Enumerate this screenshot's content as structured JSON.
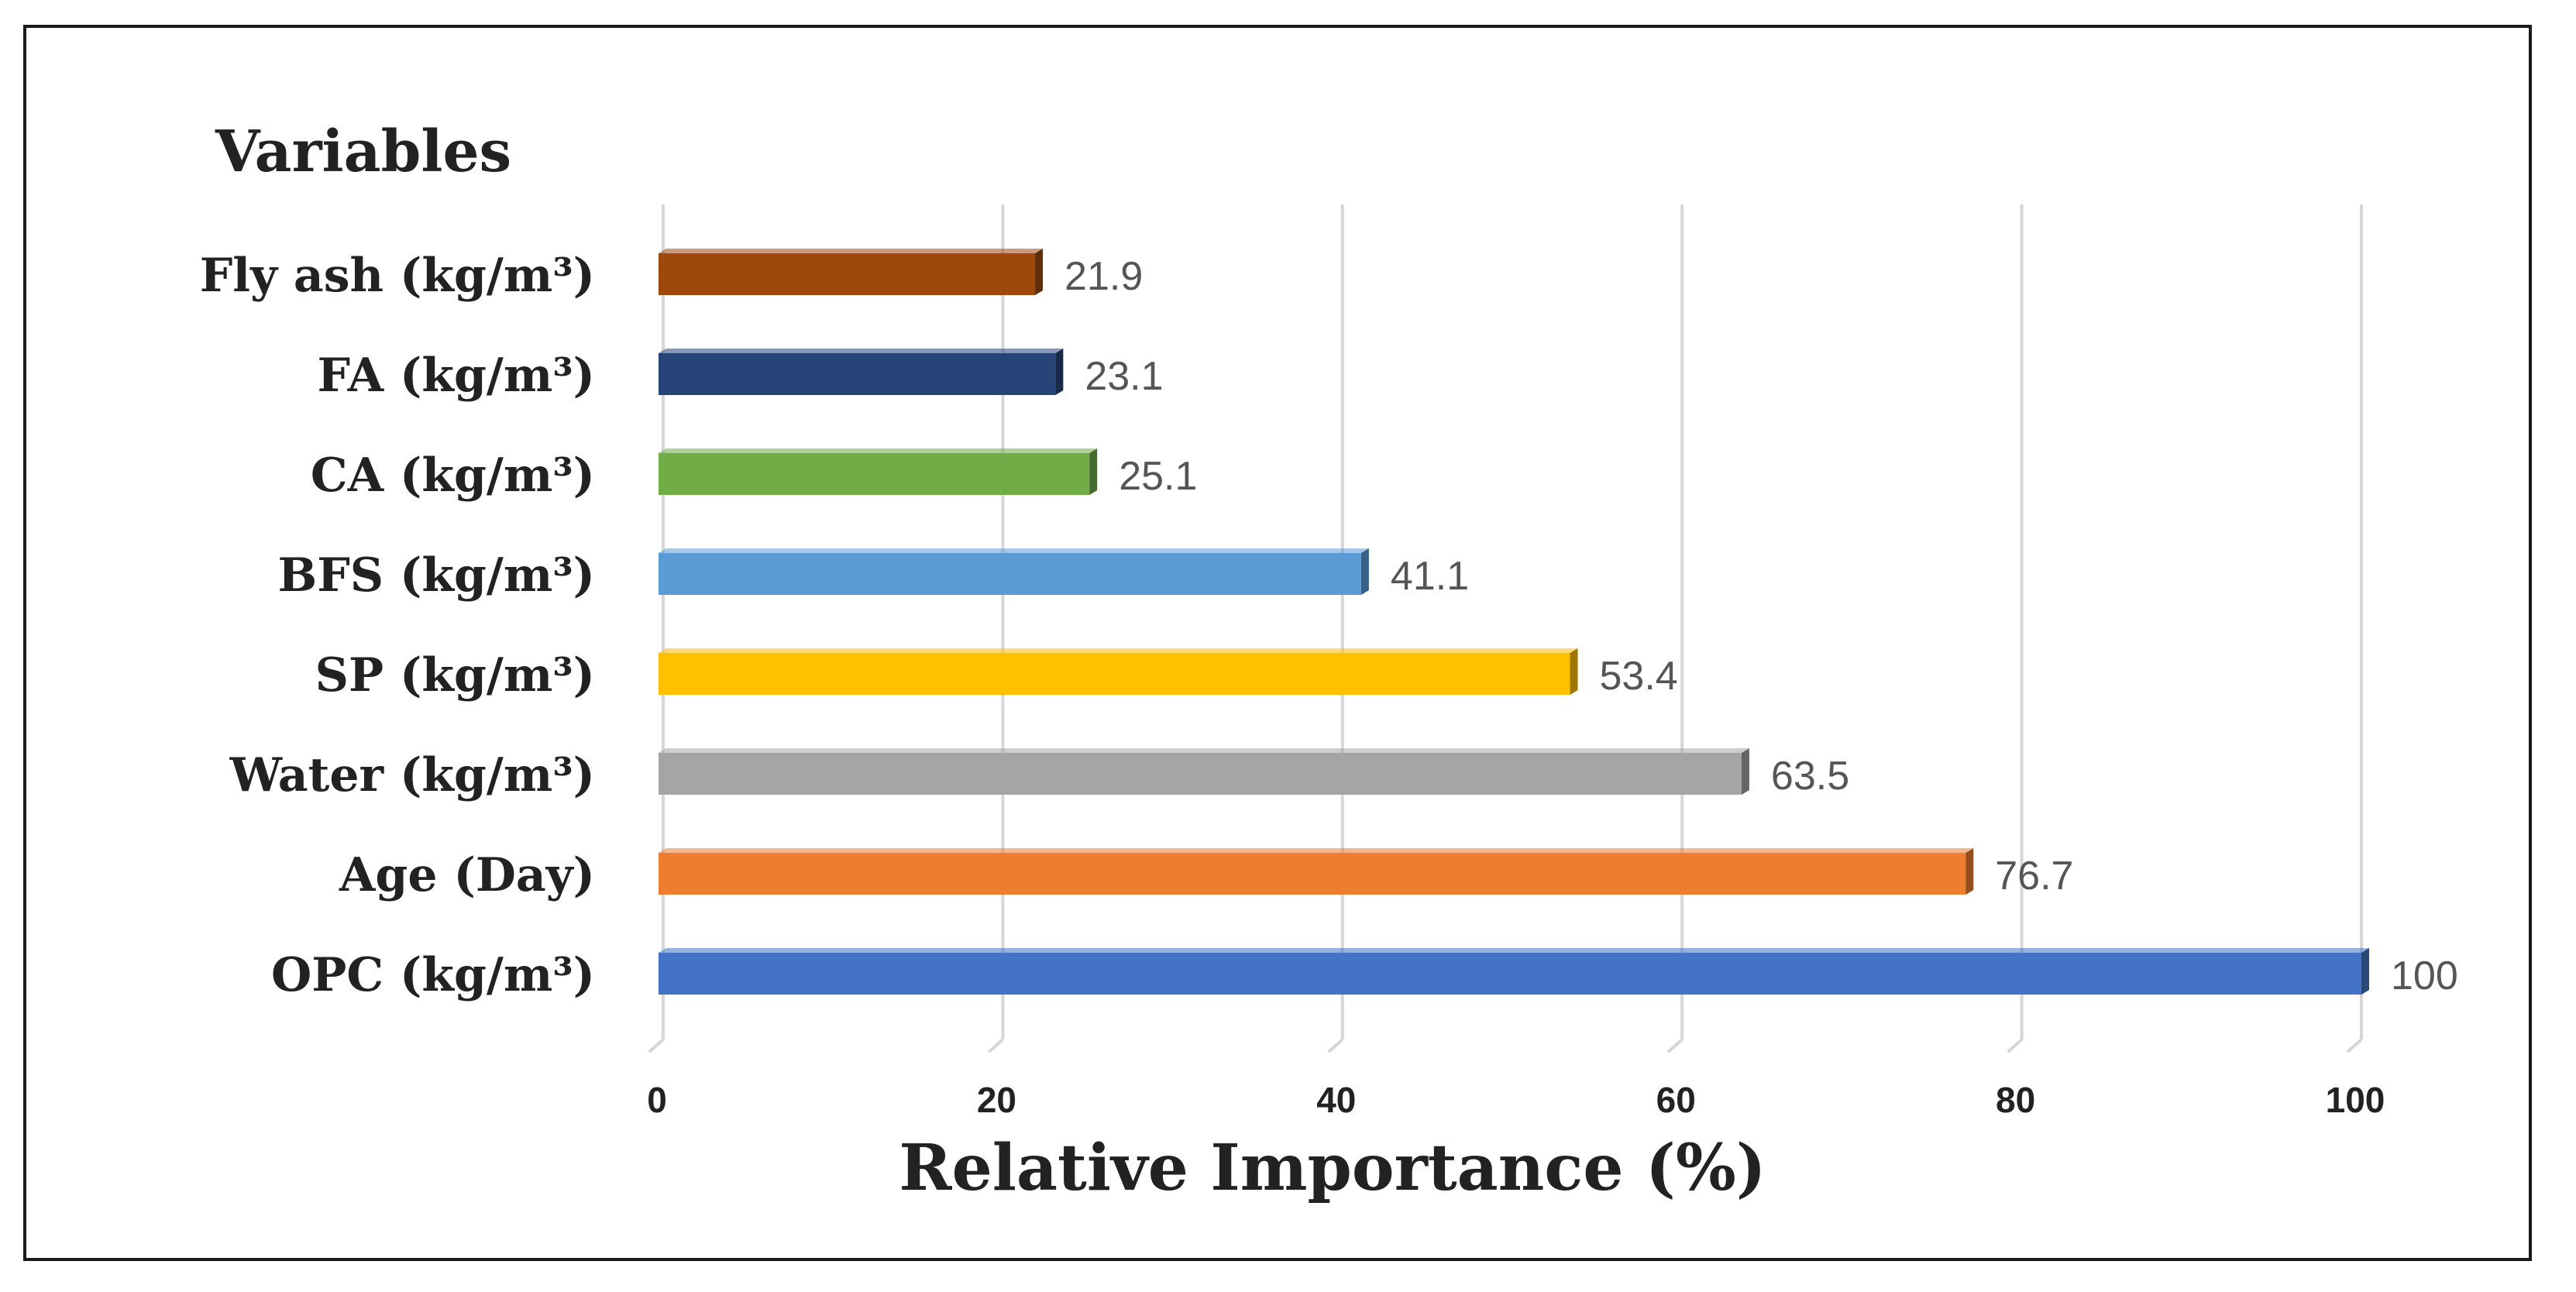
{
  "chart_data": {
    "type": "bar",
    "orientation": "horizontal",
    "title": "Variables",
    "xlabel": "Relative Importance (%)",
    "ylabel": "Variables",
    "xlim": [
      0,
      100
    ],
    "xticks": [
      0,
      20,
      40,
      60,
      80,
      100
    ],
    "grid": true,
    "categories": [
      "Fly ash (kg/m³)",
      "FA (kg/m³)",
      "CA (kg/m³)",
      "BFS (kg/m³)",
      "SP (kg/m³)",
      "Water (kg/m³)",
      "Age (Day)",
      "OPC (kg/m³)"
    ],
    "values": [
      21.9,
      23.1,
      25.1,
      41.1,
      53.4,
      63.5,
      76.7,
      100
    ],
    "value_labels": [
      "21.9",
      "23.1",
      "25.1",
      "41.1",
      "53.4",
      "63.5",
      "76.7",
      "100"
    ],
    "colors": [
      "#9E480E",
      "#264478",
      "#70AD47",
      "#5B9BD5",
      "#FFC000",
      "#A5A5A5",
      "#ED7D31",
      "#4472C4"
    ]
  }
}
